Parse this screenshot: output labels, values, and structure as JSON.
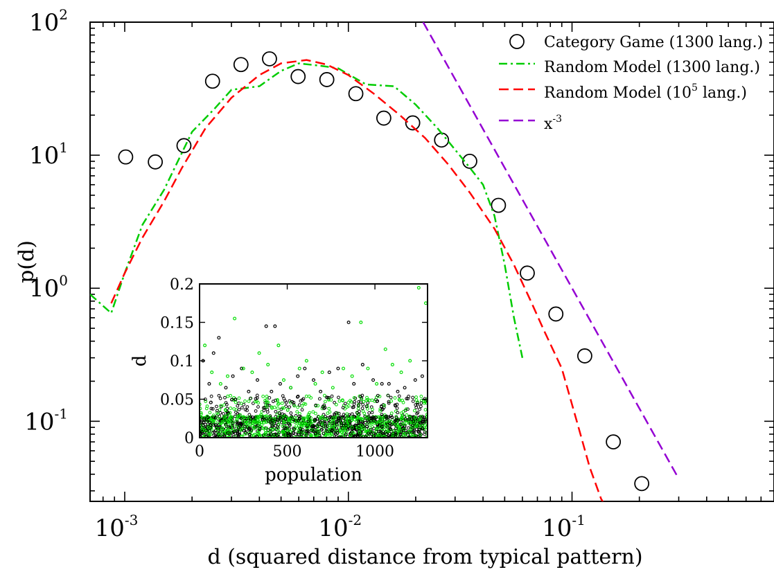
{
  "chart_data": [
    {
      "type": "line",
      "role": "main",
      "xlabel": "d (squared distance from typical pattern)",
      "ylabel": "p(d)",
      "xscale": "log",
      "yscale": "log",
      "xlim": [
        0.0007,
        0.8
      ],
      "ylim": [
        0.025,
        100
      ],
      "x_ticks": [
        {
          "base": "10",
          "exp": "-3",
          "value": 0.001
        },
        {
          "base": "10",
          "exp": "-2",
          "value": 0.01
        },
        {
          "base": "10",
          "exp": "-1",
          "value": 0.1
        }
      ],
      "y_ticks": [
        {
          "base": "10",
          "exp": "-1",
          "value": 0.1
        },
        {
          "base": "10",
          "exp": "0",
          "value": 1
        },
        {
          "base": "10",
          "exp": "1",
          "value": 10
        },
        {
          "base": "10",
          "exp": "2",
          "value": 100
        }
      ],
      "legend_position": "top-right",
      "series": [
        {
          "name": "Category Game (1300 lang.)",
          "style": "circles",
          "color": "#000000",
          "x": [
            0.00101,
            0.00137,
            0.00184,
            0.00247,
            0.00331,
            0.00444,
            0.00596,
            0.00801,
            0.0108,
            0.0144,
            0.0194,
            0.0261,
            0.0349,
            0.0469,
            0.0631,
            0.0847,
            0.114,
            0.153,
            0.205
          ],
          "y": [
            9.7,
            8.9,
            11.8,
            36,
            48,
            53,
            39,
            37,
            29,
            19,
            17.5,
            13,
            9,
            4.2,
            1.3,
            0.64,
            0.31,
            0.07,
            0.034
          ]
        },
        {
          "name": "Random Model (1300 lang.)",
          "style": "dash-dot",
          "color": "#00cc00",
          "x": [
            0.0007,
            0.00087,
            0.001,
            0.0012,
            0.0015,
            0.002,
            0.0025,
            0.003,
            0.004,
            0.005,
            0.006,
            0.0075,
            0.009,
            0.012,
            0.016,
            0.02,
            0.025,
            0.03,
            0.035,
            0.04,
            0.045,
            0.05,
            0.055,
            0.06
          ],
          "y": [
            0.9,
            0.65,
            1.3,
            3.0,
            5.5,
            15,
            22,
            31,
            33,
            43,
            49,
            47,
            45,
            34,
            33,
            24,
            16,
            11,
            8,
            6,
            3.5,
            1.5,
            0.6,
            0.3
          ]
        },
        {
          "name": "Random Model (10^5 lang.)",
          "name_base": "Random Model (10",
          "name_sup": "5",
          "name_end": " lang.)",
          "style": "dashed",
          "color": "#ff0000",
          "x": [
            0.00087,
            0.001,
            0.0012,
            0.0015,
            0.0018,
            0.0023,
            0.003,
            0.004,
            0.005,
            0.0065,
            0.008,
            0.01,
            0.013,
            0.017,
            0.022,
            0.028,
            0.035,
            0.045,
            0.055,
            0.065,
            0.075,
            0.09,
            0.105,
            0.12,
            0.135,
            0.15
          ],
          "y": [
            0.77,
            1.3,
            2.4,
            4.5,
            8,
            16,
            27,
            40,
            49,
            52,
            48,
            40,
            29,
            20,
            13.5,
            8.5,
            5.2,
            2.8,
            1.5,
            0.82,
            0.48,
            0.25,
            0.1,
            0.045,
            0.026,
            0.02
          ]
        },
        {
          "name": "x^-3",
          "name_base": "x",
          "name_sup": "-3",
          "name_end": "",
          "style": "dashed",
          "color": "#9400d3",
          "x": [
            0.0216,
            0.3
          ],
          "y": [
            100,
            0.037
          ]
        }
      ]
    },
    {
      "type": "scatter",
      "role": "inset",
      "xlabel": "population",
      "ylabel": "d",
      "xlim": [
        0,
        1300
      ],
      "ylim": [
        0,
        0.2
      ],
      "x_ticks": [
        "0",
        "500",
        "1000"
      ],
      "y_ticks": [
        "0",
        "0.05",
        "0.1",
        "0.15",
        "0.2"
      ],
      "series": [
        {
          "name": "",
          "style": "small-circles",
          "color": "#000000",
          "note_shape": "~1300 points; ticks mass below 0.03, sparse outliers up to 0.15",
          "x": [
            20,
            55,
            80,
            110,
            150,
            190,
            240,
            280,
            330,
            380,
            410,
            430,
            460,
            520,
            560,
            600,
            650,
            690,
            740,
            790,
            850,
            880,
            930,
            990,
            1040,
            1080,
            1130,
            1170,
            1230,
            1270
          ],
          "y": [
            0.1,
            0.07,
            0.11,
            0.13,
            0.065,
            0.08,
            0.09,
            0.06,
            0.075,
            0.145,
            0.06,
            0.145,
            0.07,
            0.065,
            0.08,
            0.09,
            0.075,
            0.06,
            0.085,
            0.09,
            0.15,
            0.07,
            0.095,
            0.075,
            0.07,
            0.07,
            0.06,
            0.065,
            0.075,
            0.08
          ]
        },
        {
          "name": "",
          "style": "small-circles",
          "color": "#00dd00",
          "x": [
            30,
            70,
            120,
            160,
            200,
            250,
            300,
            340,
            390,
            450,
            480,
            520,
            570,
            610,
            660,
            700,
            760,
            820,
            870,
            920,
            960,
            1010,
            1060,
            1100,
            1150,
            1200,
            1250,
            1290
          ],
          "y": [
            0.12,
            0.085,
            0.07,
            0.08,
            0.155,
            0.09,
            0.085,
            0.11,
            0.095,
            0.12,
            0.075,
            0.065,
            0.09,
            0.1,
            0.07,
            0.085,
            0.065,
            0.09,
            0.08,
            0.15,
            0.09,
            0.07,
            0.115,
            0.095,
            0.085,
            0.1,
            0.195,
            0.175
          ]
        }
      ]
    }
  ]
}
